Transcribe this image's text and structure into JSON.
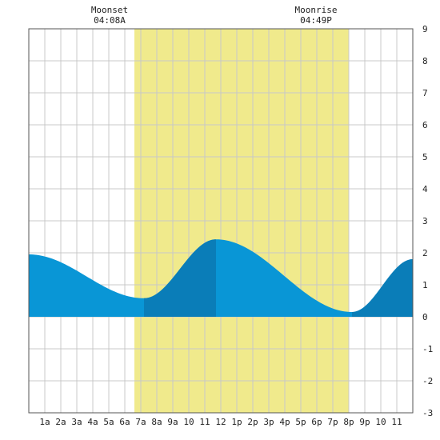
{
  "annotations": {
    "moonset_label": "Moonset",
    "moonset_time": "04:08A",
    "moonrise_label": "Moonrise",
    "moonrise_time": "04:49P"
  },
  "chart_data": {
    "type": "area",
    "title": "",
    "xlabel": "",
    "ylabel": "",
    "x_range_hours": [
      0,
      24
    ],
    "ylim": [
      -3,
      9
    ],
    "y_ticks": [
      9,
      8,
      7,
      6,
      5,
      4,
      3,
      2,
      1,
      0,
      -1,
      -2,
      -3
    ],
    "x_tick_labels": [
      {
        "hour": 1,
        "label": "1a"
      },
      {
        "hour": 2,
        "label": "2a"
      },
      {
        "hour": 3,
        "label": "3a"
      },
      {
        "hour": 4,
        "label": "4a"
      },
      {
        "hour": 5,
        "label": "5a"
      },
      {
        "hour": 6,
        "label": "6a"
      },
      {
        "hour": 7,
        "label": "7a"
      },
      {
        "hour": 8,
        "label": "8a"
      },
      {
        "hour": 9,
        "label": "9a"
      },
      {
        "hour": 10,
        "label": "10"
      },
      {
        "hour": 11,
        "label": "11"
      },
      {
        "hour": 12,
        "label": "12"
      },
      {
        "hour": 13,
        "label": "1p"
      },
      {
        "hour": 14,
        "label": "2p"
      },
      {
        "hour": 15,
        "label": "3p"
      },
      {
        "hour": 16,
        "label": "4p"
      },
      {
        "hour": 17,
        "label": "5p"
      },
      {
        "hour": 18,
        "label": "6p"
      },
      {
        "hour": 19,
        "label": "7p"
      },
      {
        "hour": 20,
        "label": "8p"
      },
      {
        "hour": 21,
        "label": "9p"
      },
      {
        "hour": 22,
        "label": "10"
      },
      {
        "hour": 23,
        "label": "11"
      }
    ],
    "grid": true,
    "daylight_hours": [
      6.6,
      20.0
    ],
    "tide_extremes": [
      {
        "hour": 0.0,
        "height": 1.95
      },
      {
        "hour": 7.2,
        "height": 0.58
      },
      {
        "hour": 11.7,
        "height": 2.42
      },
      {
        "hour": 20.2,
        "height": 0.15
      },
      {
        "hour": 24.0,
        "height": 1.8
      }
    ],
    "darker_fill_segments": [
      [
        7.2,
        11.7
      ],
      [
        20.2,
        24.0
      ]
    ],
    "moon_events": [
      {
        "name": "Moonset",
        "time": "04:08A",
        "hour": 4.13
      },
      {
        "name": "Moonrise",
        "time": "04:49P",
        "hour": 16.82
      }
    ],
    "colors": {
      "daylight": "#f0ea8c",
      "tide": "#0996d6",
      "tide_dark": "#0a7db8",
      "grid": "#c8c8c8",
      "frame": "#555555"
    }
  }
}
